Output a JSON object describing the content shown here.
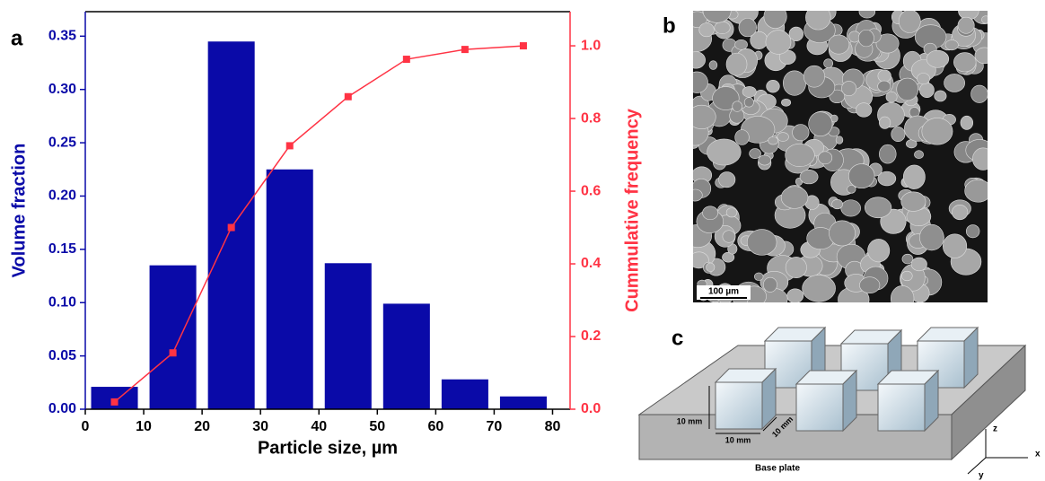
{
  "chart_data": {
    "type": "bar",
    "x_label": "Particle size, µm",
    "y_label": "Volume fraction",
    "y2_label": "Cummulative frequency",
    "x": [
      5,
      15,
      25,
      35,
      45,
      55,
      65,
      75
    ],
    "series": [
      {
        "type": "bar",
        "color": "#0a0aa8",
        "values": [
          0.021,
          0.135,
          0.345,
          0.225,
          0.137,
          0.099,
          0.028,
          0.012
        ]
      },
      {
        "type": "line",
        "color": "#ff3344",
        "axis": "y2",
        "values": [
          0.02,
          0.155,
          0.5,
          0.725,
          0.86,
          0.963,
          0.99,
          1.0
        ]
      }
    ],
    "xlim": [
      0,
      83
    ],
    "xticks": [
      0,
      10,
      20,
      30,
      40,
      50,
      60,
      70,
      80
    ],
    "ylim": [
      0,
      0.373
    ],
    "yticks": [
      {
        "value": 0,
        "label": "0.00"
      },
      {
        "value": 0.05,
        "label": "0.05"
      },
      {
        "value": 0.1,
        "label": "0.10"
      },
      {
        "value": 0.15,
        "label": "0.15"
      },
      {
        "value": 0.2,
        "label": "0.20"
      },
      {
        "value": 0.25,
        "label": "0.25"
      },
      {
        "value": 0.3,
        "label": "0.30"
      },
      {
        "value": 0.35,
        "label": "0.35"
      }
    ],
    "y2lim": [
      0,
      1.094
    ],
    "y2ticks": [
      {
        "value": 0,
        "label": "0.0"
      },
      {
        "value": 0.2,
        "label": "0.2"
      },
      {
        "value": 0.4,
        "label": "0.4"
      },
      {
        "value": 0.6,
        "label": "0.6"
      },
      {
        "value": 0.8,
        "label": "0.8"
      },
      {
        "value": 1,
        "label": "1.0"
      }
    ],
    "y_color": "#0a0aa8",
    "y2_color": "#ff3344"
  },
  "panels": {
    "a": "a",
    "b": "b",
    "c": "c",
    "scale_bar": "100 µm",
    "dim_height": "10 mm",
    "dim_width": "10 mm",
    "dim_depth": "10 mm",
    "base_plate": "Base plate",
    "axis_z": "z",
    "axis_x": "x",
    "axis_y": "y"
  }
}
